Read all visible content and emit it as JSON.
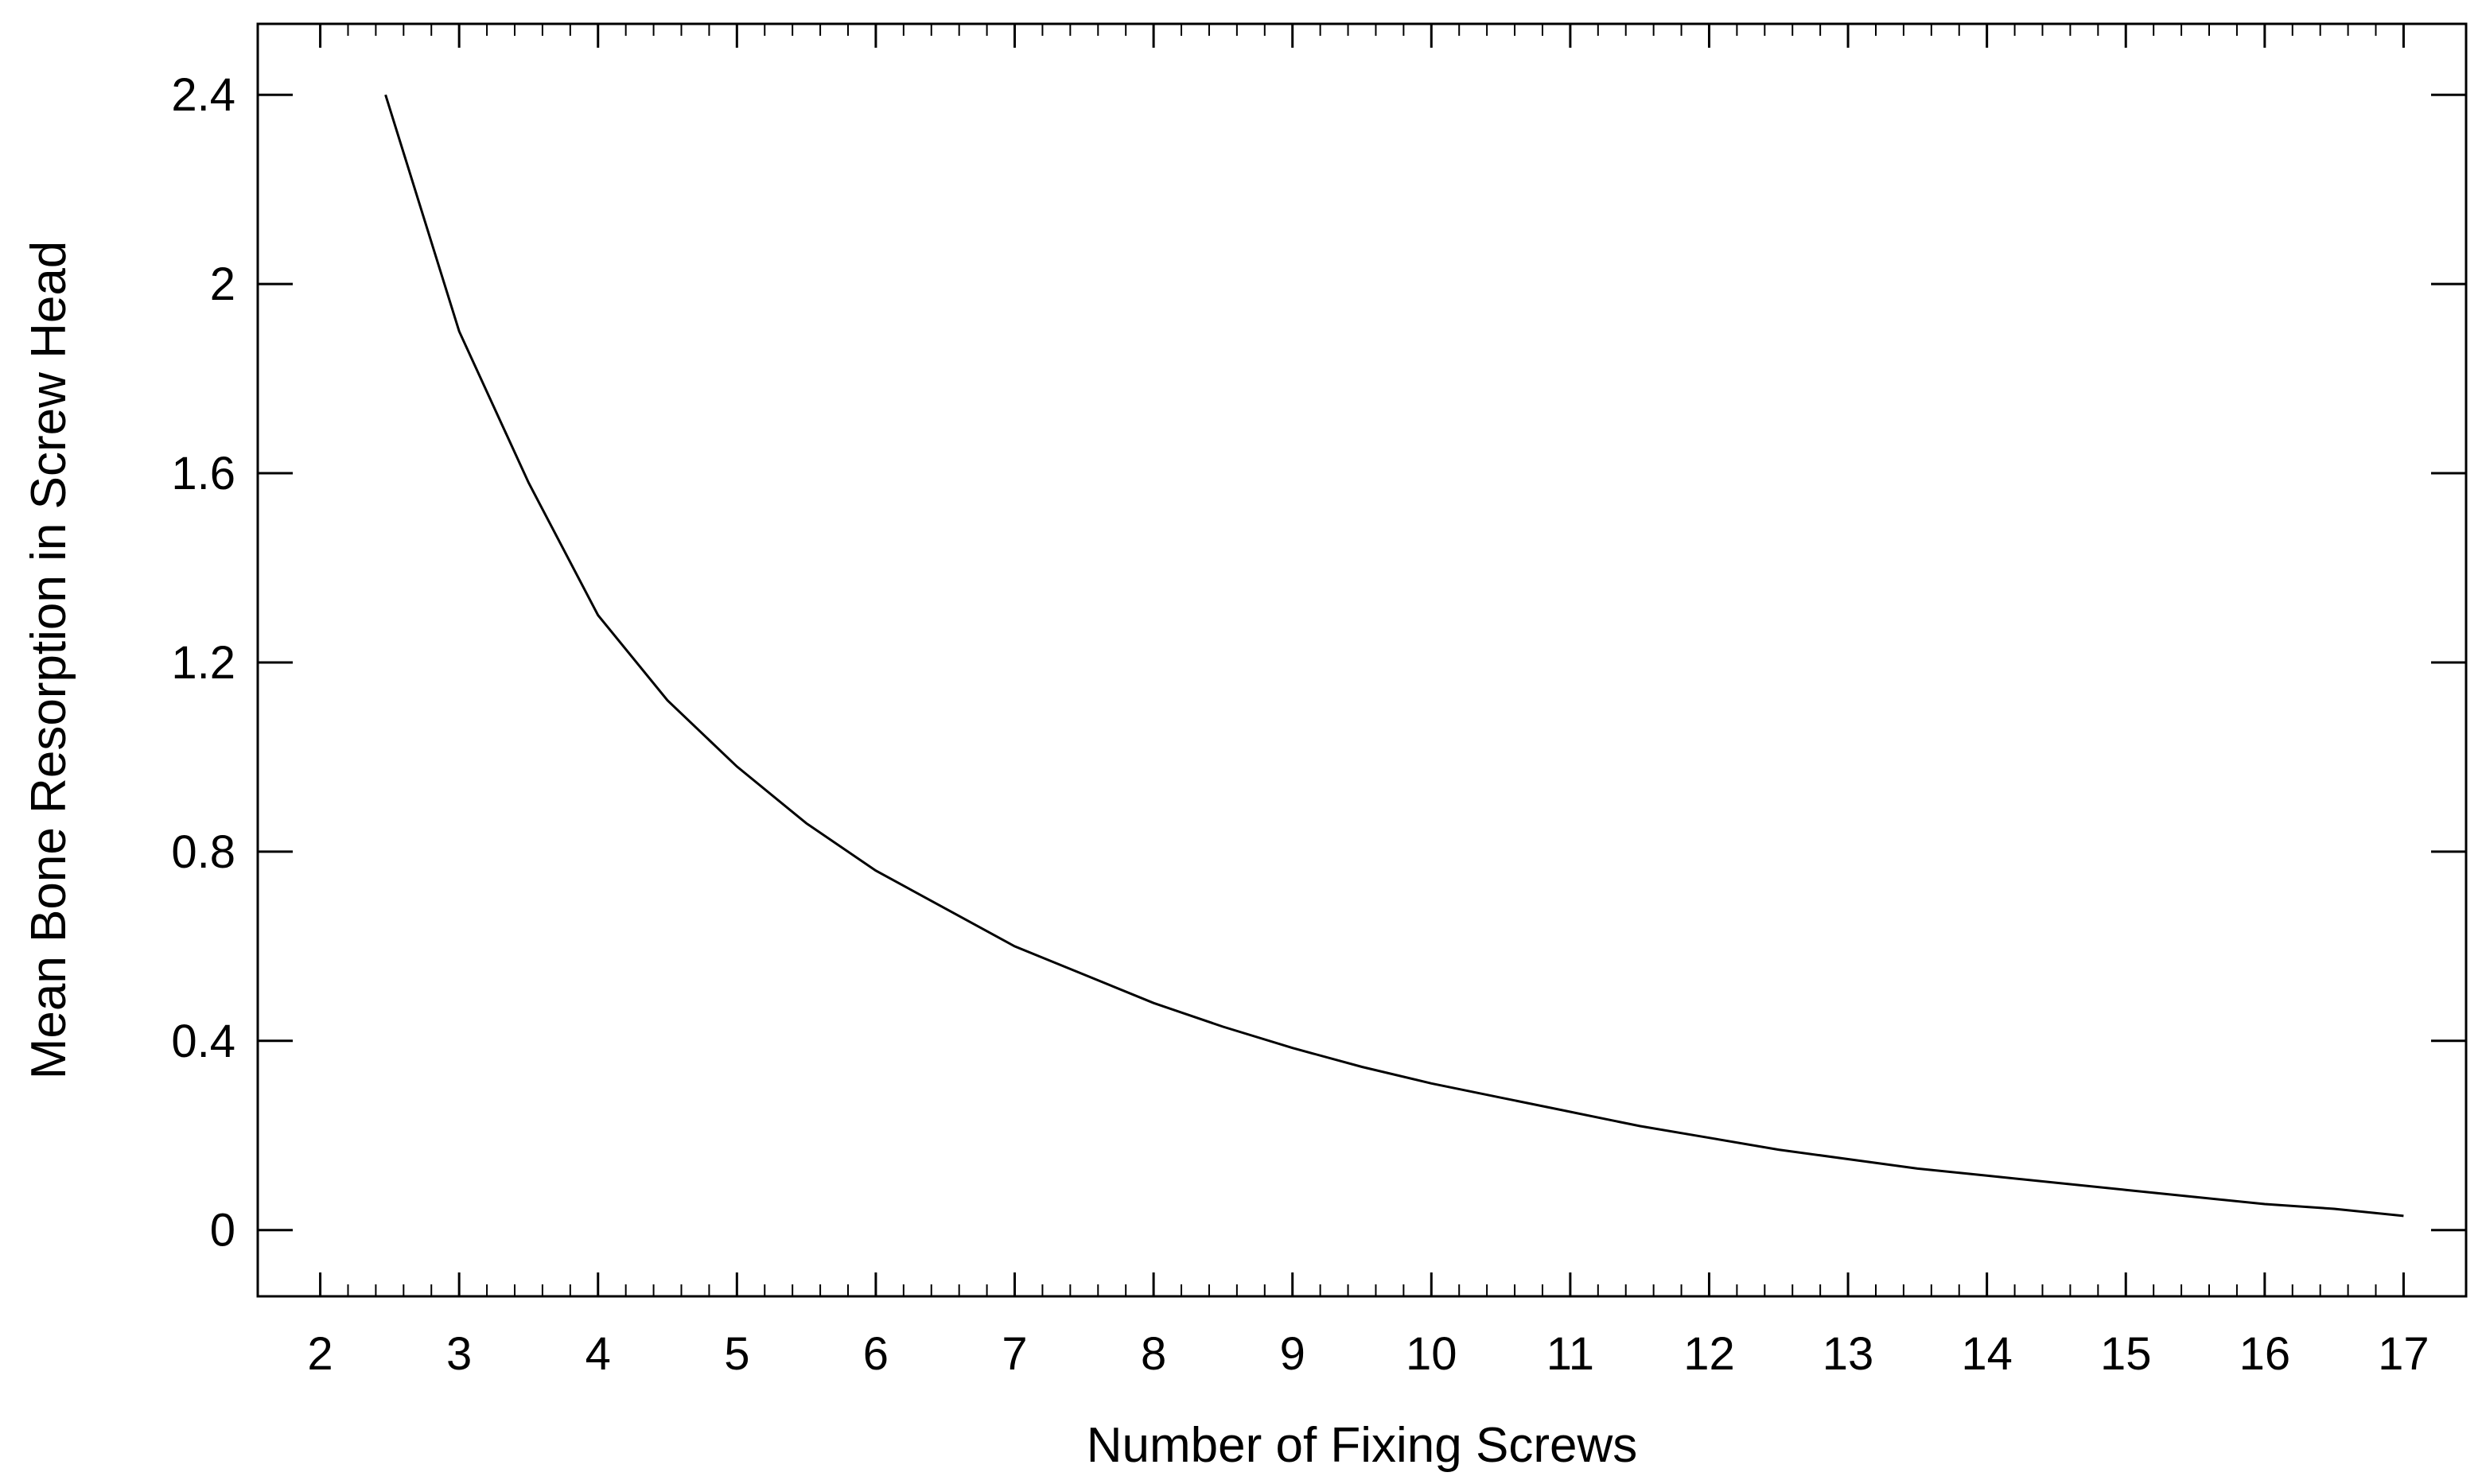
{
  "chart_data": {
    "type": "line",
    "title": "",
    "xlabel": "Number of Fixing Screws",
    "ylabel": "Mean Bone Resorption in Screw Head",
    "xlim": [
      1.55,
      17.45
    ],
    "ylim": [
      -0.14,
      2.55
    ],
    "x_ticks": [
      2,
      3,
      4,
      5,
      6,
      7,
      8,
      9,
      10,
      11,
      12,
      13,
      14,
      15,
      16,
      17
    ],
    "x_tick_labels": [
      "2",
      "3",
      "4",
      "5",
      "6",
      "7",
      "8",
      "9",
      "10",
      "11",
      "12",
      "13",
      "14",
      "15",
      "16",
      "17"
    ],
    "y_ticks": [
      0,
      0.4,
      0.8,
      1.2,
      1.6,
      2.0,
      2.4
    ],
    "y_tick_labels": [
      "0",
      "0.4",
      "0.8",
      "1.2",
      "1.6",
      "2",
      "2.4"
    ],
    "grid": false,
    "series": [
      {
        "color": "#000000",
        "x": [
          2.47,
          3.0,
          3.5,
          4.0,
          4.5,
          5.0,
          5.5,
          6.0,
          6.5,
          7.0,
          7.5,
          8.0,
          8.5,
          9.0,
          9.5,
          10.0,
          10.5,
          11.0,
          11.5,
          12.0,
          12.5,
          13.0,
          13.5,
          14.0,
          14.5,
          15.0,
          15.5,
          16.0,
          16.5,
          17.0
        ],
        "y": [
          2.4,
          1.9,
          1.58,
          1.3,
          1.12,
          0.98,
          0.86,
          0.76,
          0.68,
          0.6,
          0.54,
          0.48,
          0.43,
          0.385,
          0.345,
          0.31,
          0.28,
          0.25,
          0.22,
          0.195,
          0.17,
          0.15,
          0.13,
          0.115,
          0.1,
          0.085,
          0.07,
          0.055,
          0.045,
          0.03
        ]
      }
    ]
  }
}
